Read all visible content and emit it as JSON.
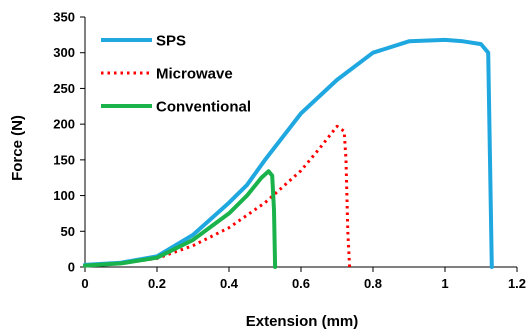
{
  "chart_data": {
    "type": "line",
    "xlabel": "Extension (mm)",
    "ylabel": "Force (N)",
    "xlim": [
      0,
      1.2
    ],
    "ylim": [
      0,
      350
    ],
    "xticks": [
      0,
      0.2,
      0.4,
      0.6,
      0.8,
      1,
      1.2
    ],
    "xtick_labels": [
      "0",
      "0.2",
      "0.4",
      "0.6",
      "0.8",
      "1",
      "1.2"
    ],
    "yticks": [
      0,
      50,
      100,
      150,
      200,
      250,
      300,
      350
    ],
    "ytick_labels": [
      "0",
      "50",
      "100",
      "150",
      "200",
      "250",
      "300",
      "350"
    ],
    "grid": false,
    "legend_position": "top-left",
    "series": [
      {
        "name": "SPS",
        "color": "#1FA7E0",
        "style": "solid",
        "points": [
          [
            0,
            3
          ],
          [
            0.1,
            6
          ],
          [
            0.2,
            15
          ],
          [
            0.3,
            45
          ],
          [
            0.4,
            90
          ],
          [
            0.45,
            115
          ],
          [
            0.5,
            150
          ],
          [
            0.6,
            215
          ],
          [
            0.7,
            262
          ],
          [
            0.8,
            300
          ],
          [
            0.9,
            316
          ],
          [
            1.0,
            318
          ],
          [
            1.05,
            316
          ],
          [
            1.1,
            312
          ],
          [
            1.12,
            300
          ],
          [
            1.125,
            150
          ],
          [
            1.13,
            0
          ]
        ]
      },
      {
        "name": "Microwave",
        "color": "#FF0000",
        "style": "dotted",
        "points": [
          [
            0,
            2
          ],
          [
            0.1,
            5
          ],
          [
            0.2,
            12
          ],
          [
            0.3,
            30
          ],
          [
            0.4,
            55
          ],
          [
            0.5,
            90
          ],
          [
            0.6,
            135
          ],
          [
            0.65,
            165
          ],
          [
            0.7,
            197
          ],
          [
            0.72,
            190
          ],
          [
            0.725,
            150
          ],
          [
            0.73,
            50
          ],
          [
            0.735,
            0
          ]
        ]
      },
      {
        "name": "Conventional",
        "color": "#19B24B",
        "style": "solid",
        "points": [
          [
            0,
            2
          ],
          [
            0.1,
            5
          ],
          [
            0.2,
            13
          ],
          [
            0.3,
            38
          ],
          [
            0.4,
            75
          ],
          [
            0.45,
            100
          ],
          [
            0.49,
            125
          ],
          [
            0.51,
            134
          ],
          [
            0.52,
            128
          ],
          [
            0.525,
            80
          ],
          [
            0.528,
            0
          ]
        ]
      }
    ]
  }
}
